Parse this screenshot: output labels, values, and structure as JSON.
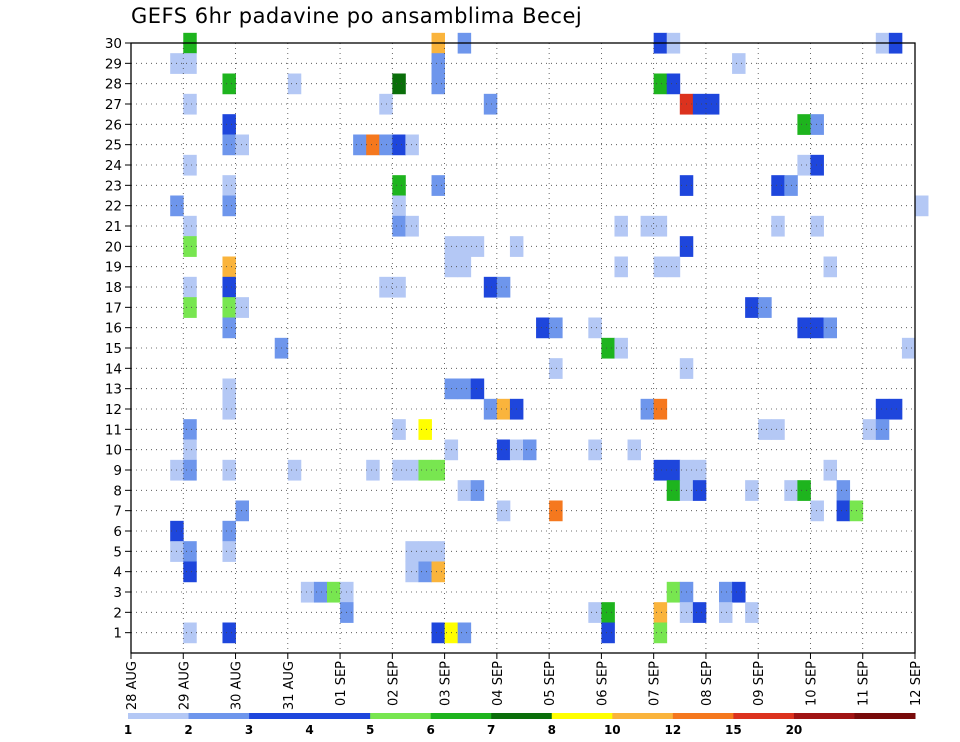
{
  "chart_data": {
    "type": "heatmap",
    "title": "GEFS 6hr padavine po ansamblima Becej",
    "y_ticks": [
      "1",
      "2",
      "3",
      "4",
      "5",
      "6",
      "7",
      "8",
      "9",
      "10",
      "11",
      "12",
      "13",
      "14",
      "15",
      "16",
      "17",
      "18",
      "19",
      "20",
      "21",
      "22",
      "23",
      "24",
      "25",
      "26",
      "27",
      "28",
      "29",
      "30"
    ],
    "x_ticks": [
      "28 AUG",
      "29 AUG",
      "30 AUG",
      "31 AUG",
      "01 SEP",
      "02 SEP",
      "03 SEP",
      "04 SEP",
      "05 SEP",
      "06 SEP",
      "07 SEP",
      "08 SEP",
      "09 SEP",
      "10 SEP",
      "11 SEP",
      "12 SEP"
    ],
    "x_range_days": [
      0,
      15
    ],
    "y_range_members": [
      0,
      30
    ],
    "steps_per_day": 4,
    "colorbar": {
      "labels": [
        "1",
        "2",
        "3",
        "4",
        "5",
        "6",
        "7",
        "8",
        "10",
        "12",
        "15",
        "20"
      ],
      "colors": [
        "#b4c8f5",
        "#6e96ec",
        "#1e46dc",
        "#1e46dc",
        "#78e650",
        "#1eb41e",
        "#0a6e0a",
        "#ffff00",
        "#fab43c",
        "#f5781e",
        "#dc321e",
        "#a01414",
        "#780a0a"
      ]
    },
    "cells": [
      [
        30,
        4,
        6
      ],
      [
        30,
        23,
        9
      ],
      [
        30,
        25,
        2
      ],
      [
        30,
        40,
        3
      ],
      [
        30,
        41,
        1
      ],
      [
        30,
        57,
        1
      ],
      [
        30,
        58,
        3
      ],
      [
        29,
        3,
        1
      ],
      [
        29,
        4,
        1
      ],
      [
        29,
        23,
        2
      ],
      [
        29,
        46,
        1
      ],
      [
        28,
        7,
        6
      ],
      [
        28,
        12,
        1
      ],
      [
        28,
        20,
        7
      ],
      [
        28,
        23,
        2
      ],
      [
        28,
        40,
        6
      ],
      [
        28,
        41,
        4
      ],
      [
        27,
        4,
        1
      ],
      [
        27,
        19,
        1
      ],
      [
        27,
        27,
        2
      ],
      [
        27,
        42,
        11
      ],
      [
        27,
        43,
        4
      ],
      [
        27,
        44,
        3
      ],
      [
        26,
        7,
        3
      ],
      [
        26,
        51,
        6
      ],
      [
        26,
        52,
        2
      ],
      [
        25,
        17,
        2
      ],
      [
        25,
        18,
        10
      ],
      [
        25,
        19,
        2
      ],
      [
        25,
        20,
        3
      ],
      [
        25,
        21,
        1
      ],
      [
        25,
        7,
        2
      ],
      [
        25,
        8,
        1
      ],
      [
        24,
        4,
        1
      ],
      [
        24,
        51,
        1
      ],
      [
        24,
        52,
        4
      ],
      [
        23,
        7,
        1
      ],
      [
        23,
        20,
        6
      ],
      [
        23,
        23,
        2
      ],
      [
        23,
        42,
        4
      ],
      [
        23,
        49,
        3
      ],
      [
        23,
        50,
        2
      ],
      [
        22,
        3,
        2
      ],
      [
        22,
        7,
        2
      ],
      [
        22,
        20,
        1
      ],
      [
        22,
        60,
        1
      ],
      [
        21,
        4,
        1
      ],
      [
        21,
        20,
        2
      ],
      [
        21,
        21,
        1
      ],
      [
        21,
        37,
        1
      ],
      [
        21,
        39,
        1
      ],
      [
        21,
        40,
        1
      ],
      [
        21,
        49,
        1
      ],
      [
        21,
        52,
        1
      ],
      [
        20,
        4,
        5
      ],
      [
        20,
        24,
        1
      ],
      [
        20,
        25,
        1
      ],
      [
        20,
        26,
        1
      ],
      [
        20,
        29,
        1
      ],
      [
        20,
        42,
        3
      ],
      [
        19,
        7,
        9
      ],
      [
        19,
        24,
        1
      ],
      [
        19,
        25,
        1
      ],
      [
        19,
        37,
        1
      ],
      [
        19,
        40,
        1
      ],
      [
        19,
        41,
        1
      ],
      [
        19,
        53,
        1
      ],
      [
        18,
        4,
        1
      ],
      [
        18,
        7,
        4
      ],
      [
        18,
        19,
        1
      ],
      [
        18,
        20,
        1
      ],
      [
        18,
        27,
        3
      ],
      [
        18,
        28,
        2
      ],
      [
        17,
        4,
        5
      ],
      [
        17,
        7,
        5
      ],
      [
        17,
        8,
        1
      ],
      [
        17,
        47,
        3
      ],
      [
        17,
        48,
        2
      ],
      [
        16,
        7,
        2
      ],
      [
        16,
        31,
        3
      ],
      [
        16,
        32,
        2
      ],
      [
        16,
        35,
        1
      ],
      [
        16,
        51,
        3
      ],
      [
        16,
        52,
        4
      ],
      [
        16,
        53,
        2
      ],
      [
        15,
        11,
        2
      ],
      [
        15,
        36,
        6
      ],
      [
        15,
        37,
        1
      ],
      [
        15,
        59,
        1
      ],
      [
        14,
        32,
        1
      ],
      [
        14,
        42,
        1
      ],
      [
        13,
        24,
        2
      ],
      [
        13,
        25,
        2
      ],
      [
        13,
        26,
        3
      ],
      [
        13,
        7,
        1
      ],
      [
        12,
        7,
        1
      ],
      [
        12,
        27,
        2
      ],
      [
        12,
        28,
        9
      ],
      [
        12,
        29,
        3
      ],
      [
        12,
        39,
        2
      ],
      [
        12,
        40,
        10
      ],
      [
        12,
        57,
        3
      ],
      [
        12,
        58,
        4
      ],
      [
        11,
        4,
        2
      ],
      [
        11,
        20,
        1
      ],
      [
        11,
        22,
        8
      ],
      [
        11,
        48,
        1
      ],
      [
        11,
        49,
        1
      ],
      [
        11,
        56,
        1
      ],
      [
        11,
        57,
        2
      ],
      [
        10,
        4,
        1
      ],
      [
        10,
        24,
        1
      ],
      [
        10,
        28,
        4
      ],
      [
        10,
        29,
        1
      ],
      [
        10,
        30,
        2
      ],
      [
        10,
        35,
        1
      ],
      [
        10,
        38,
        1
      ],
      [
        9,
        3,
        1
      ],
      [
        9,
        4,
        2
      ],
      [
        9,
        7,
        1
      ],
      [
        9,
        12,
        1
      ],
      [
        9,
        18,
        1
      ],
      [
        9,
        20,
        1
      ],
      [
        9,
        21,
        1
      ],
      [
        9,
        22,
        5
      ],
      [
        9,
        23,
        5
      ],
      [
        9,
        40,
        4
      ],
      [
        9,
        41,
        3
      ],
      [
        9,
        42,
        1
      ],
      [
        9,
        43,
        1
      ],
      [
        9,
        53,
        1
      ],
      [
        8,
        25,
        1
      ],
      [
        8,
        26,
        2
      ],
      [
        8,
        41,
        6
      ],
      [
        8,
        42,
        1
      ],
      [
        8,
        43,
        3
      ],
      [
        8,
        47,
        1
      ],
      [
        8,
        50,
        1
      ],
      [
        8,
        51,
        6
      ],
      [
        8,
        54,
        2
      ],
      [
        7,
        8,
        2
      ],
      [
        7,
        28,
        1
      ],
      [
        7,
        32,
        10
      ],
      [
        7,
        54,
        3
      ],
      [
        7,
        55,
        5
      ],
      [
        7,
        52,
        1
      ],
      [
        6,
        3,
        3
      ],
      [
        6,
        7,
        2
      ],
      [
        5,
        3,
        1
      ],
      [
        5,
        4,
        2
      ],
      [
        5,
        7,
        1
      ],
      [
        5,
        21,
        1
      ],
      [
        5,
        22,
        1
      ],
      [
        5,
        23,
        1
      ],
      [
        4,
        4,
        4
      ],
      [
        4,
        21,
        1
      ],
      [
        4,
        22,
        2
      ],
      [
        4,
        23,
        9
      ],
      [
        3,
        13,
        1
      ],
      [
        3,
        14,
        2
      ],
      [
        3,
        15,
        5
      ],
      [
        3,
        16,
        1
      ],
      [
        3,
        41,
        5
      ],
      [
        3,
        42,
        2
      ],
      [
        3,
        45,
        2
      ],
      [
        3,
        46,
        3
      ],
      [
        2,
        16,
        2
      ],
      [
        2,
        35,
        1
      ],
      [
        2,
        36,
        6
      ],
      [
        2,
        40,
        9
      ],
      [
        2,
        42,
        1
      ],
      [
        2,
        43,
        4
      ],
      [
        2,
        45,
        1
      ],
      [
        2,
        47,
        1
      ],
      [
        1,
        4,
        1
      ],
      [
        1,
        7,
        3
      ],
      [
        1,
        23,
        3
      ],
      [
        1,
        24,
        8
      ],
      [
        1,
        25,
        2
      ],
      [
        1,
        36,
        3
      ],
      [
        1,
        40,
        5
      ]
    ]
  }
}
